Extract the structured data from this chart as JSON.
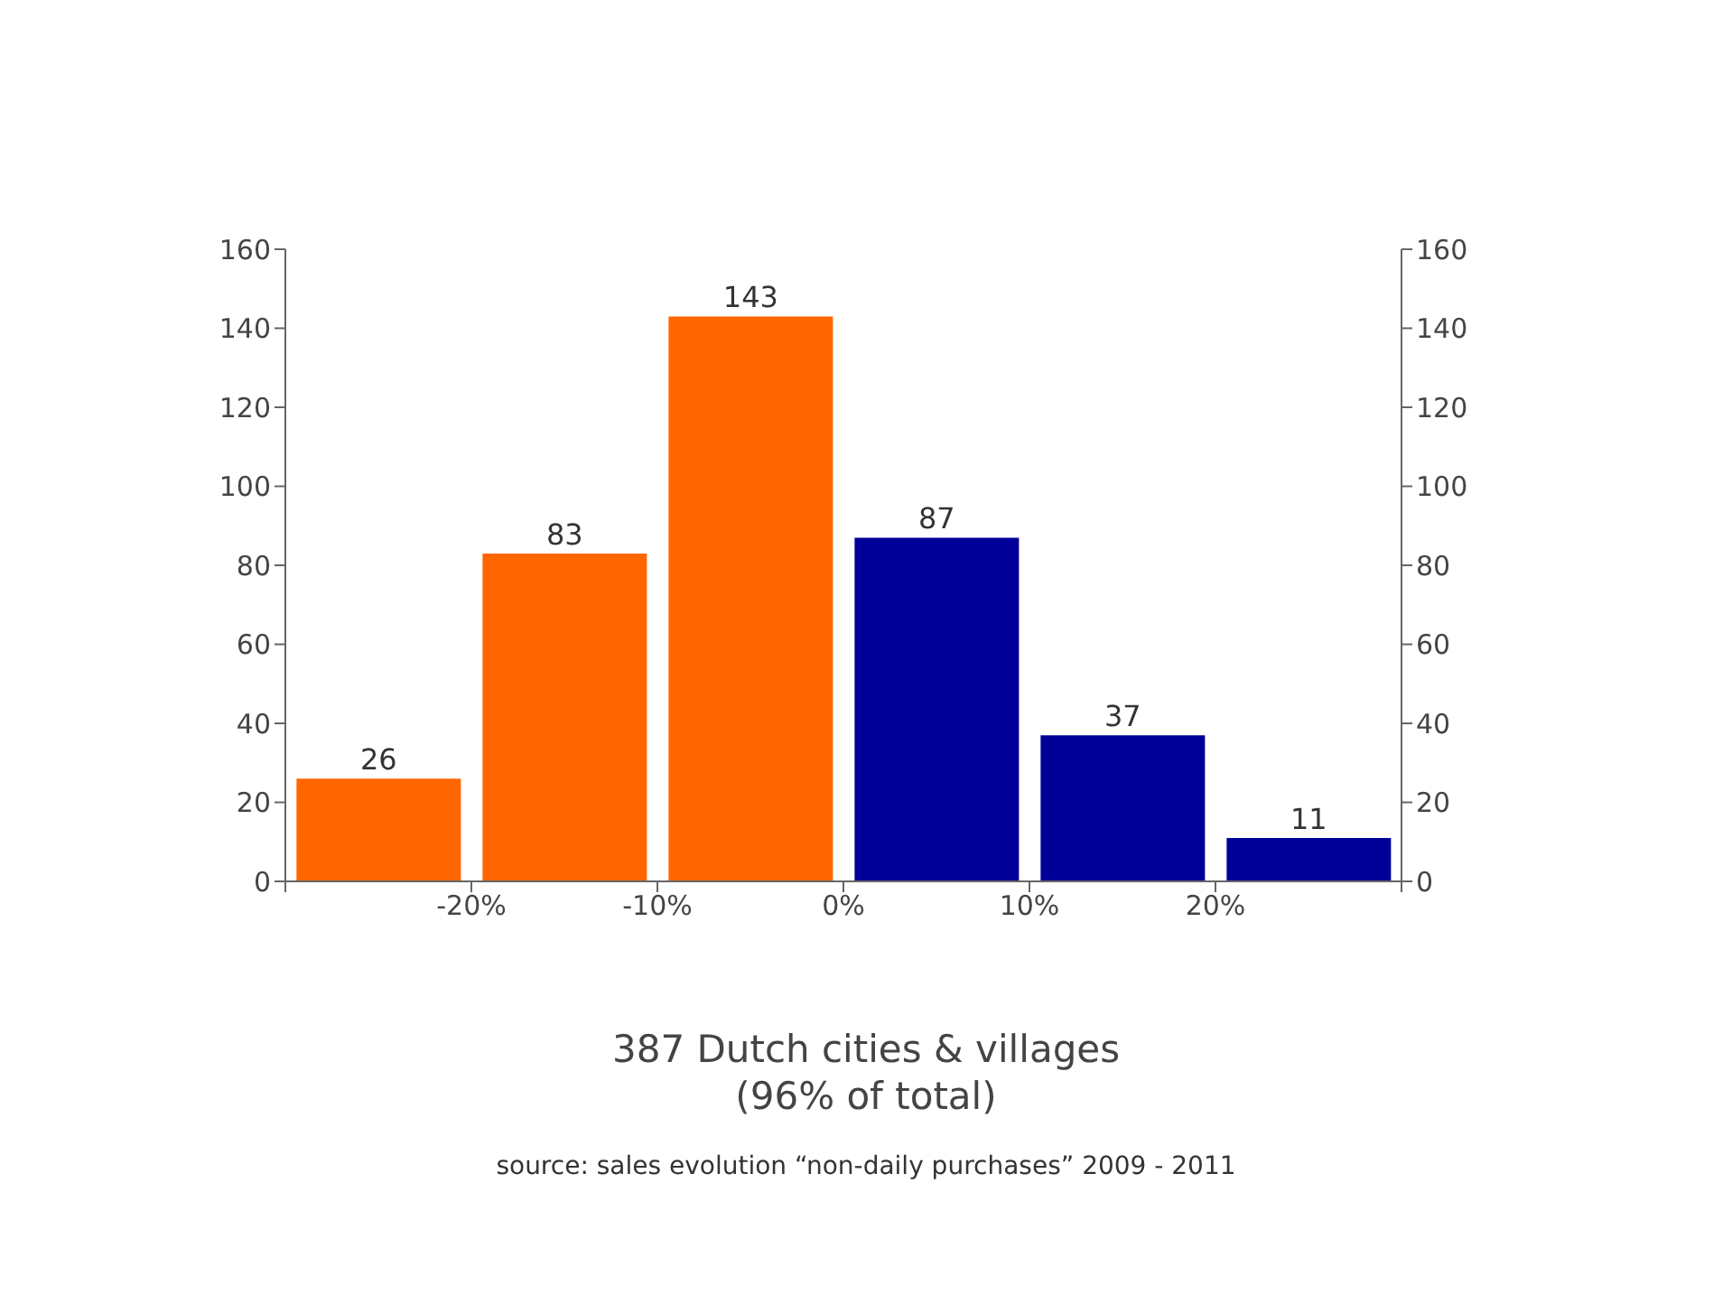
{
  "chart_data": {
    "type": "histogram",
    "bins": [
      -30,
      -20,
      -10,
      0,
      10,
      20,
      30
    ],
    "values": [
      26,
      83,
      143,
      87,
      37,
      11
    ],
    "colors": [
      "#ff6600",
      "#ff6600",
      "#ff6600",
      "#000099",
      "#000099",
      "#000099"
    ],
    "xlim": [
      -30,
      30
    ],
    "xticks": [
      {
        "value": -30,
        "label": null
      },
      {
        "value": -20,
        "label": "-20%"
      },
      {
        "value": -10,
        "label": "-10%"
      },
      {
        "value": 0,
        "label": "0%"
      },
      {
        "value": 10,
        "label": "10%"
      },
      {
        "value": 20,
        "label": "20%"
      },
      {
        "value": 30,
        "label": null
      }
    ],
    "ylim": [
      0,
      160
    ],
    "yticks": [
      0,
      20,
      40,
      60,
      80,
      100,
      120,
      140,
      160
    ],
    "y2lim": [
      0,
      160
    ],
    "y2ticks": [
      0,
      20,
      40,
      60,
      80,
      100,
      120,
      140,
      160
    ],
    "data_labels": true,
    "grid": false,
    "legend": false,
    "annotations": [
      "387 Dutch cities & villages",
      "(96% of total)",
      "source: sales evolution “non-daily purchases” 2009 - 2011"
    ]
  }
}
